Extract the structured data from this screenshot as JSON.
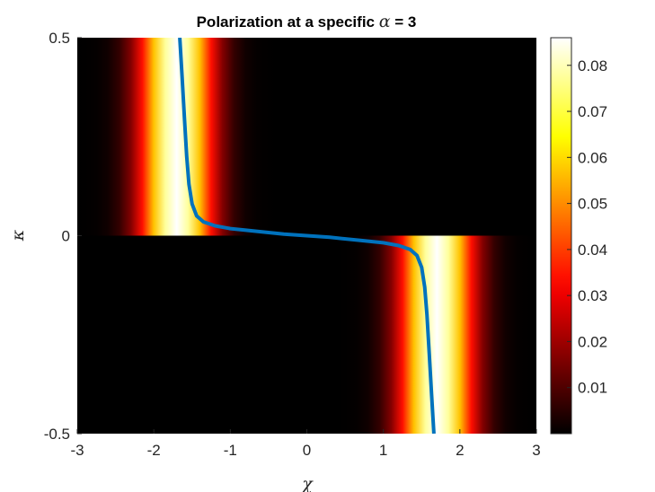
{
  "chart_data": {
    "type": "heatmap",
    "title_text": "Polarization at a specific ",
    "title_symbol": "α",
    "title_suffix": " = 3",
    "xlabel": "χ",
    "ylabel": "κ",
    "xlim": [
      -3,
      3
    ],
    "ylim": [
      -0.5,
      0.5
    ],
    "x_ticks": [
      "-3",
      "-2",
      "-1",
      "0",
      "1",
      "2",
      "3"
    ],
    "y_ticks": [
      "-0.5",
      "0",
      "0.5"
    ],
    "colormap": "hot",
    "colorbar": {
      "range": [
        0,
        0.086
      ],
      "ticks": [
        "0.01",
        "0.02",
        "0.03",
        "0.04",
        "0.05",
        "0.06",
        "0.07",
        "0.08"
      ]
    },
    "heat_bands": [
      {
        "kappa_range": [
          0,
          0.5
        ],
        "chi_center": -1.7,
        "peak": 0.086
      },
      {
        "kappa_range": [
          -0.5,
          0
        ],
        "chi_center": 1.7,
        "peak": 0.086
      }
    ],
    "series": [
      {
        "color": "#0072BD",
        "x": [
          -1.66,
          -1.63,
          -1.6,
          -1.57,
          -1.54,
          -1.5,
          -1.44,
          -1.35,
          -1.2,
          -1.0,
          -0.7,
          -0.3,
          0,
          0.3,
          0.7,
          1.0,
          1.2,
          1.35,
          1.44,
          1.5,
          1.54,
          1.57,
          1.6,
          1.63,
          1.66
        ],
        "y": [
          0.5,
          0.4,
          0.3,
          0.2,
          0.13,
          0.08,
          0.05,
          0.035,
          0.025,
          0.018,
          0.012,
          0.004,
          0,
          -0.004,
          -0.012,
          -0.018,
          -0.025,
          -0.035,
          -0.05,
          -0.08,
          -0.13,
          -0.2,
          -0.3,
          -0.4,
          -0.5
        ]
      }
    ]
  }
}
